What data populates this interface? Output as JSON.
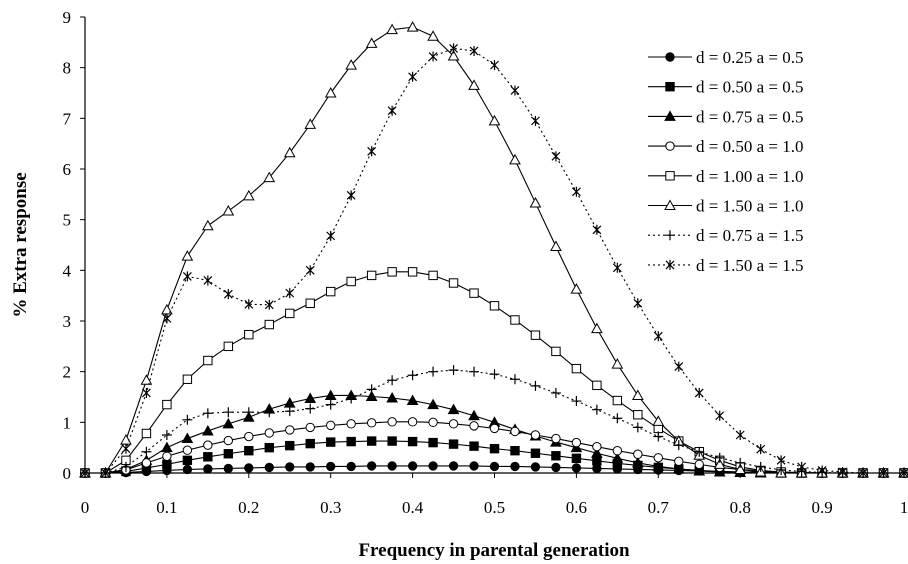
{
  "chart_data": {
    "type": "line",
    "xlabel": "Frequency in parental generation",
    "ylabel": "% Extra response",
    "xlim": [
      0,
      1
    ],
    "ylim": [
      0,
      9
    ],
    "xticks": [
      "0",
      "0.1",
      "0.2",
      "0.3",
      "0.4",
      "0.5",
      "0.6",
      "0.7",
      "0.8",
      "0.9",
      "1"
    ],
    "yticks": [
      "0",
      "1",
      "2",
      "3",
      "4",
      "5",
      "6",
      "7",
      "8",
      "9"
    ],
    "grid": false,
    "legend_position": "top-right",
    "x": [
      0,
      0.025,
      0.05,
      0.075,
      0.1,
      0.125,
      0.15,
      0.175,
      0.2,
      0.225,
      0.25,
      0.275,
      0.3,
      0.325,
      0.35,
      0.375,
      0.4,
      0.425,
      0.45,
      0.475,
      0.5,
      0.525,
      0.55,
      0.575,
      0.6,
      0.625,
      0.65,
      0.675,
      0.7,
      0.725,
      0.75,
      0.775,
      0.8,
      0.825,
      0.85,
      0.875,
      0.9,
      0.925,
      0.95,
      0.975,
      1.0
    ],
    "series": [
      {
        "name": "d = 0.25  a = 0.5",
        "marker": "filled-circle",
        "line": "solid",
        "values": [
          0,
          0,
          0.01,
          0.03,
          0.05,
          0.07,
          0.08,
          0.09,
          0.1,
          0.11,
          0.12,
          0.12,
          0.13,
          0.13,
          0.14,
          0.14,
          0.14,
          0.14,
          0.14,
          0.14,
          0.13,
          0.13,
          0.12,
          0.11,
          0.1,
          0.09,
          0.08,
          0.07,
          0.06,
          0.05,
          0.04,
          0.03,
          0.02,
          0.02,
          0.01,
          0.01,
          0,
          0,
          0,
          0,
          0
        ]
      },
      {
        "name": "d = 0.50  a = 0.5",
        "marker": "filled-square",
        "line": "solid",
        "values": [
          0,
          0,
          0.03,
          0.1,
          0.17,
          0.25,
          0.32,
          0.38,
          0.44,
          0.5,
          0.54,
          0.58,
          0.61,
          0.62,
          0.63,
          0.63,
          0.62,
          0.6,
          0.57,
          0.53,
          0.48,
          0.44,
          0.39,
          0.34,
          0.29,
          0.24,
          0.19,
          0.15,
          0.11,
          0.08,
          0.05,
          0.03,
          0.02,
          0.01,
          0,
          0,
          0,
          0,
          0,
          0,
          0
        ]
      },
      {
        "name": "d = 0.75  a = 0.5",
        "marker": "filled-triangle",
        "line": "solid",
        "values": [
          0,
          0,
          0.07,
          0.25,
          0.5,
          0.68,
          0.83,
          0.97,
          1.1,
          1.26,
          1.38,
          1.47,
          1.53,
          1.53,
          1.51,
          1.48,
          1.43,
          1.35,
          1.25,
          1.13,
          1.0,
          0.86,
          0.73,
          0.61,
          0.5,
          0.39,
          0.29,
          0.2,
          0.13,
          0.08,
          0.04,
          0.02,
          0.01,
          0,
          0,
          0,
          0,
          0,
          0,
          0,
          0
        ]
      },
      {
        "name": "d = 0.50  a = 1.0",
        "marker": "open-circle",
        "line": "solid",
        "values": [
          0,
          0,
          0.06,
          0.2,
          0.33,
          0.45,
          0.55,
          0.64,
          0.72,
          0.79,
          0.85,
          0.9,
          0.94,
          0.97,
          0.99,
          1.01,
          1.01,
          1.0,
          0.97,
          0.93,
          0.88,
          0.82,
          0.75,
          0.68,
          0.6,
          0.52,
          0.44,
          0.37,
          0.3,
          0.23,
          0.17,
          0.11,
          0.07,
          0.04,
          0.02,
          0.01,
          0,
          0,
          0,
          0,
          0
        ]
      },
      {
        "name": "d = 1.00  a = 1.0",
        "marker": "open-square",
        "line": "solid",
        "values": [
          0,
          0,
          0.25,
          0.78,
          1.35,
          1.85,
          2.22,
          2.5,
          2.73,
          2.93,
          3.15,
          3.35,
          3.58,
          3.78,
          3.9,
          3.97,
          3.97,
          3.9,
          3.75,
          3.55,
          3.3,
          3.02,
          2.72,
          2.4,
          2.06,
          1.73,
          1.43,
          1.15,
          0.88,
          0.63,
          0.42,
          0.25,
          0.12,
          0.05,
          0.02,
          0,
          0,
          0,
          0,
          0,
          0
        ]
      },
      {
        "name": "d = 1.50  a = 1.0",
        "marker": "open-triangle",
        "line": "solid",
        "values": [
          0,
          0,
          0.65,
          1.83,
          3.22,
          4.28,
          4.88,
          5.17,
          5.47,
          5.83,
          6.32,
          6.88,
          7.5,
          8.05,
          8.48,
          8.75,
          8.8,
          8.62,
          8.23,
          7.65,
          6.95,
          6.18,
          5.33,
          4.47,
          3.63,
          2.85,
          2.15,
          1.53,
          1.02,
          0.63,
          0.35,
          0.17,
          0.07,
          0.02,
          0,
          0,
          0,
          0,
          0,
          0,
          0
        ]
      },
      {
        "name": "d = 0.75  a = 1.5",
        "marker": "plus",
        "line": "dotted",
        "values": [
          0,
          0,
          0.12,
          0.42,
          0.75,
          1.05,
          1.18,
          1.2,
          1.2,
          1.2,
          1.22,
          1.27,
          1.35,
          1.47,
          1.65,
          1.83,
          1.93,
          2.0,
          2.03,
          2.0,
          1.95,
          1.85,
          1.72,
          1.58,
          1.42,
          1.25,
          1.08,
          0.9,
          0.72,
          0.55,
          0.42,
          0.3,
          0.2,
          0.12,
          0.06,
          0.03,
          0.01,
          0,
          0,
          0,
          0
        ]
      },
      {
        "name": "d = 1.50  a = 1.5",
        "marker": "asterisk",
        "line": "dotted",
        "values": [
          0,
          0,
          0.48,
          1.58,
          3.05,
          3.88,
          3.8,
          3.53,
          3.33,
          3.32,
          3.55,
          4.0,
          4.68,
          5.48,
          6.35,
          7.15,
          7.82,
          8.22,
          8.38,
          8.33,
          8.05,
          7.55,
          6.95,
          6.25,
          5.55,
          4.8,
          4.05,
          3.35,
          2.7,
          2.1,
          1.58,
          1.13,
          0.75,
          0.47,
          0.25,
          0.12,
          0.05,
          0.02,
          0,
          0,
          0
        ]
      }
    ]
  }
}
